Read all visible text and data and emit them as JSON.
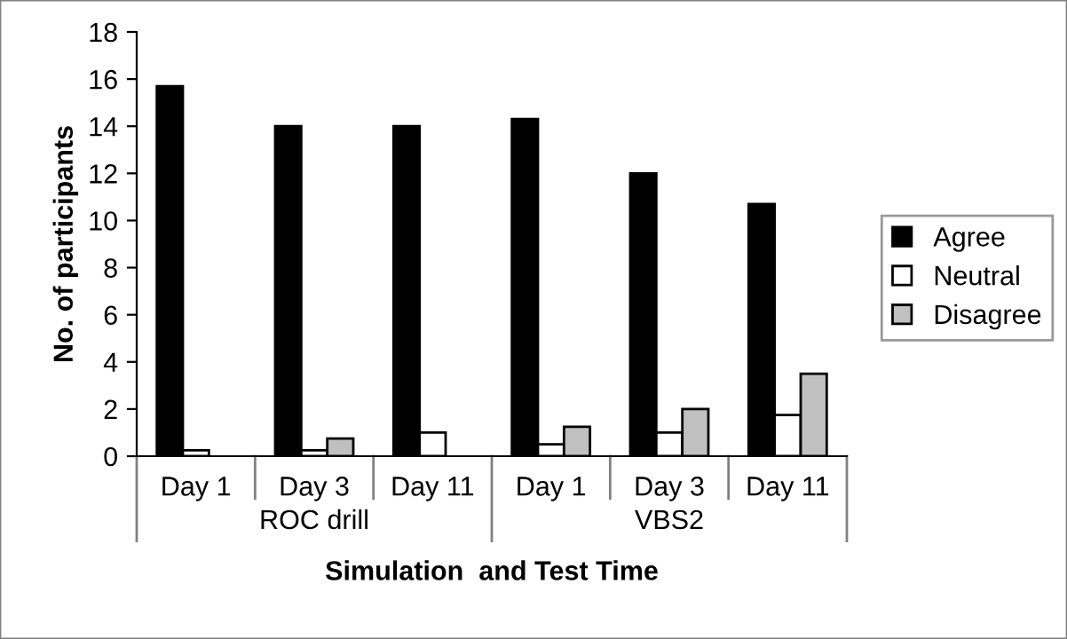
{
  "chart_data": {
    "type": "bar",
    "xlabel": "Simulation  and Test Time",
    "ylabel": "No. of participants",
    "categories": [
      "Day 1",
      "Day 3",
      "Day 11",
      "Day 1",
      "Day 3",
      "Day 11"
    ],
    "annotations": [
      "ROC drill",
      "VBS2"
    ],
    "series": [
      {
        "name": "Agree",
        "color": "#000000",
        "values": [
          15.7,
          14,
          14,
          14.3,
          12,
          10.7
        ]
      },
      {
        "name": "Neutral",
        "color": "#ffffff",
        "values": [
          0.25,
          0.25,
          1,
          0.5,
          1,
          1.75
        ]
      },
      {
        "name": "Disagree",
        "color": "#c0c0c0",
        "values": [
          null,
          0.75,
          null,
          1.25,
          2,
          3.5
        ]
      }
    ],
    "ylim": [
      0,
      18
    ],
    "yticks": [
      0,
      2,
      4,
      6,
      8,
      10,
      12,
      14,
      16,
      18
    ],
    "grid": false,
    "legend": "right"
  }
}
